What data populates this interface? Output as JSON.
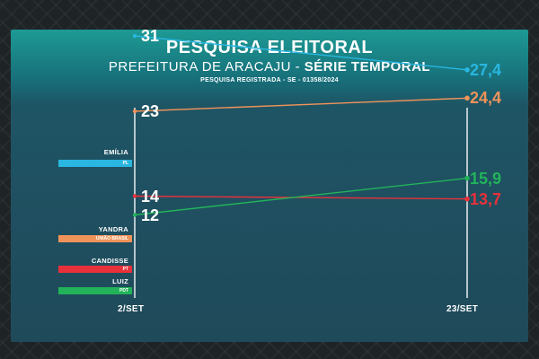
{
  "header": {
    "title": "PESQUISA ELEITORAL",
    "subtitle_main": "PREFEITURA DE  ARACAJU - ",
    "subtitle_bold": "SÉRIE TEMPORAL",
    "registry": "PESQUISA REGISTRADA - SE - 01358/2024"
  },
  "chart_data": {
    "type": "line",
    "title": "PESQUISA ELEITORAL",
    "x": [
      "2/SET",
      "23/SET"
    ],
    "series": [
      {
        "name": "EMÍLIA",
        "party": "PL",
        "values": [
          31,
          27.4
        ],
        "labels": [
          "31",
          "27,4"
        ],
        "color": "#29b6e0"
      },
      {
        "name": "YANDRA",
        "party": "UNIÃO BRASIL",
        "values": [
          23,
          24.4
        ],
        "labels": [
          "23",
          "24,4"
        ],
        "color": "#f0935a"
      },
      {
        "name": "CANDISSE",
        "party": "PT",
        "values": [
          14,
          13.7
        ],
        "labels": [
          "14",
          "13,7"
        ],
        "color": "#e8313a"
      },
      {
        "name": "LUIZ",
        "party": "PDT",
        "values": [
          12,
          15.9
        ],
        "labels": [
          "12",
          "15,9"
        ],
        "color": "#22b35a"
      }
    ],
    "grid": false,
    "legend": "left"
  }
}
